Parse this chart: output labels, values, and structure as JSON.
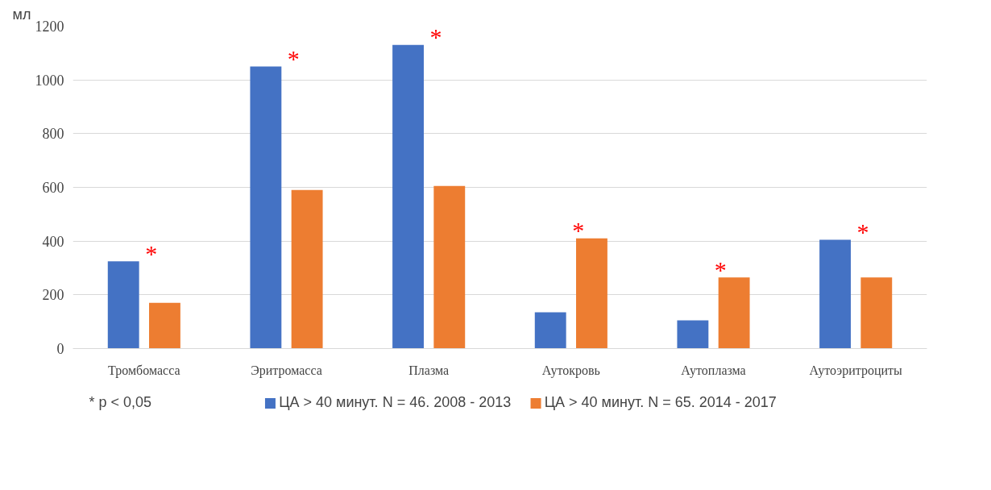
{
  "chart_data": {
    "type": "bar",
    "ylabel": "мл",
    "categories": [
      "Тромбомасса",
      "Эритромасса",
      "Плазма",
      "Аутокровь",
      "Аутоплазма",
      "Аутоэритроциты"
    ],
    "series": [
      {
        "name": "ЦА > 40 минут. N = 46. 2008 - 2013",
        "color": "#4472c4",
        "values": [
          325,
          1050,
          1130,
          135,
          105,
          405
        ]
      },
      {
        "name": "ЦА > 40 минут. N = 65. 2014 - 2017",
        "color": "#ed7d31",
        "values": [
          170,
          590,
          605,
          410,
          265,
          265
        ]
      }
    ],
    "ylim": [
      0,
      1200
    ],
    "yticks": [
      0,
      200,
      400,
      600,
      800,
      1000,
      1200
    ],
    "grid": "y",
    "legend": "bottom",
    "annotations": [
      "*",
      "*",
      "*",
      "*",
      "*",
      "*",
      "* p < 0,05"
    ]
  }
}
